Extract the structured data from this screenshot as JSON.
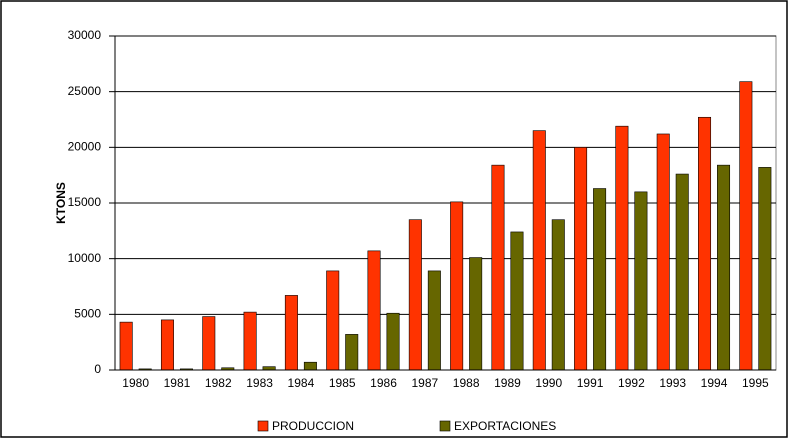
{
  "chart_data": {
    "type": "bar",
    "y_label": "KTONS",
    "categories": [
      "1980",
      "1981",
      "1982",
      "1983",
      "1984",
      "1985",
      "1986",
      "1987",
      "1988",
      "1989",
      "1990",
      "1991",
      "1992",
      "1993",
      "1994",
      "1995"
    ],
    "series": [
      {
        "name": "PRODUCCION",
        "color": "#ff3300",
        "values": [
          4300,
          4500,
          4800,
          5200,
          6700,
          8900,
          10700,
          13500,
          15100,
          18400,
          21500,
          20000,
          21900,
          21200,
          22700,
          25900
        ]
      },
      {
        "name": "EXPORTACIONES",
        "color": "#666600",
        "values": [
          100,
          100,
          200,
          300,
          700,
          3200,
          5100,
          8900,
          10100,
          12400,
          13500,
          16300,
          16000,
          17600,
          18400,
          18200
        ]
      }
    ],
    "ylim": [
      0,
      30000
    ],
    "yticks": [
      0,
      5000,
      10000,
      15000,
      20000,
      25000,
      30000
    ],
    "grid": true,
    "legend": "bottom"
  }
}
